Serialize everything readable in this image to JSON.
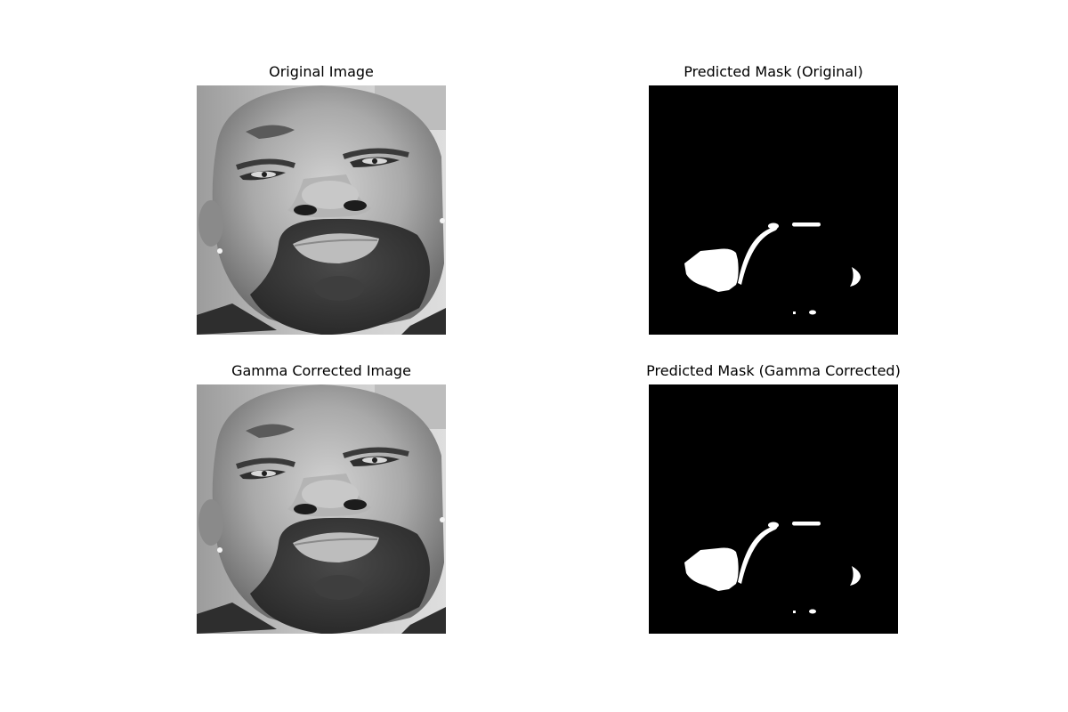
{
  "figure": {
    "panels": [
      {
        "title": "Original Image",
        "content": "grayscale-face-photo"
      },
      {
        "title": "Predicted Mask (Original)",
        "content": "binary-segmentation-mask"
      },
      {
        "title": "Gamma Corrected Image",
        "content": "grayscale-face-photo"
      },
      {
        "title": "Predicted Mask (Gamma Corrected)",
        "content": "binary-segmentation-mask"
      }
    ]
  },
  "colors": {
    "mask_background": "#000000",
    "mask_foreground": "#ffffff",
    "page_background": "#ffffff"
  }
}
